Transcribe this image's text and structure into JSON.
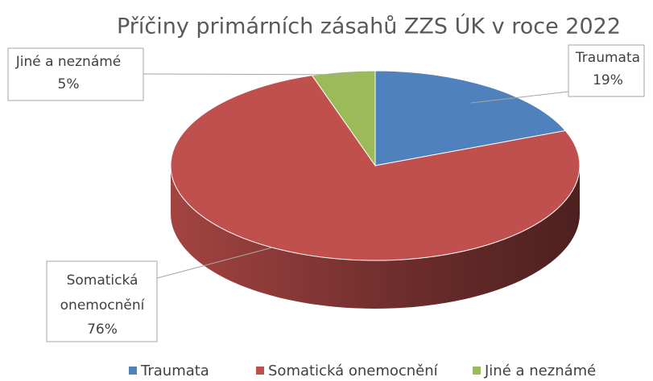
{
  "chart_data": {
    "type": "pie",
    "title": "Příčiny primárních zásahů ZZS ÚK v roce 2022",
    "categories": [
      "Traumata",
      "Somatická onemocnění",
      "Jiné a neznámé"
    ],
    "values": [
      19,
      76,
      5
    ],
    "value_labels": [
      "19%",
      "76%",
      "5%"
    ],
    "colors": [
      "#4f81bd",
      "#c0504d",
      "#9bbb59"
    ],
    "legend": "bottom"
  }
}
